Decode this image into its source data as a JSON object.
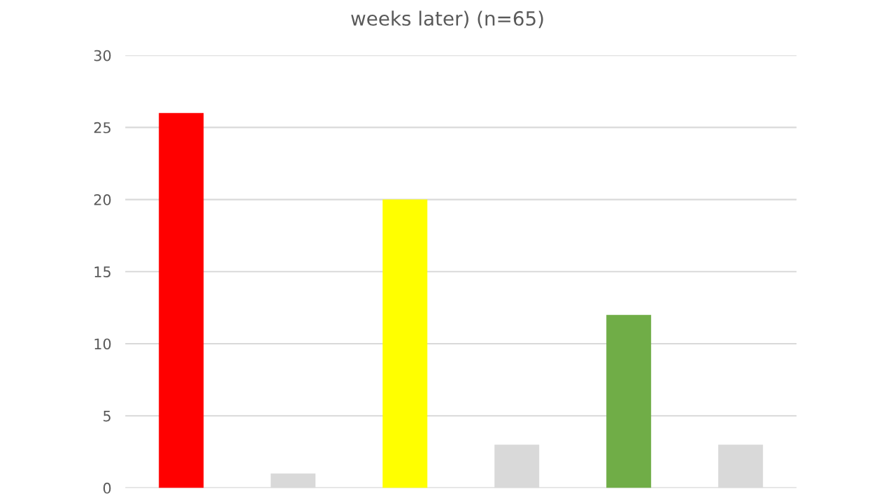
{
  "chart_data": {
    "type": "bar",
    "title": "weeks later) (n=65)",
    "categories": [
      null,
      null,
      null,
      null,
      null,
      null
    ],
    "values": [
      26,
      1,
      20,
      3,
      12,
      3
    ],
    "colors": [
      "#ff0000",
      "#d9d9d9",
      "#ffff00",
      "#d9d9d9",
      "#70ad47",
      "#d9d9d9"
    ],
    "ylim": [
      0,
      30
    ],
    "yticks": [
      0,
      5,
      10,
      15,
      20,
      25,
      30
    ],
    "grid": "y"
  }
}
